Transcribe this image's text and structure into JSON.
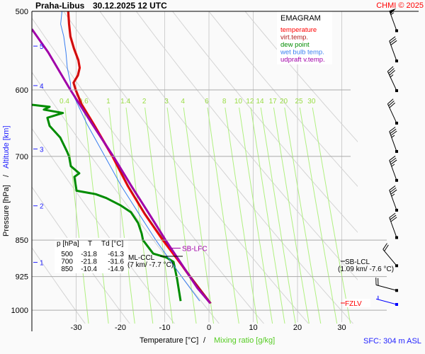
{
  "chart_data": {
    "type": "line",
    "diagram": "EMAGRAM",
    "station": "Praha-Libus",
    "datetime": "30.12.2025 12 UTC",
    "credit": "CHMI © 2025",
    "xlabel": "Temperature [°C]",
    "xlabel_sep": "/",
    "xlabel2": "Mixing ratio [g/kg]",
    "ylabel": "Pressure [hPa]",
    "ylabel_sep": "/",
    "ylabel2": "Altitude [km]",
    "surface_label": "SFC: 304 m ASL",
    "xlim": [
      -40,
      33
    ],
    "ylim": [
      1048,
      500
    ],
    "yscale": "log",
    "x_ticks": [
      -30,
      -20,
      -10,
      0,
      10,
      20,
      30
    ],
    "y_ticks": [
      500,
      600,
      700,
      850,
      925,
      1000
    ],
    "altitude_ticks": [
      {
        "km": 5,
        "p": 542
      },
      {
        "km": 4,
        "p": 594
      },
      {
        "km": 3,
        "p": 688
      },
      {
        "km": 2,
        "p": 785
      },
      {
        "km": 1,
        "p": 895
      }
    ],
    "mixing_ratio_lines": [
      0.4,
      0.6,
      1,
      1.4,
      2,
      3,
      4,
      6,
      8,
      10,
      12,
      14,
      17,
      20,
      25,
      30
    ],
    "dry_adiabats_theta_K": [
      243,
      253,
      263,
      273,
      283,
      293,
      303,
      313,
      323,
      333,
      343
    ],
    "legend": [
      {
        "label": "temperature",
        "color": "#ff0000"
      },
      {
        "label": "virt.temp.",
        "color": "#b01818"
      },
      {
        "label": "dew point",
        "color": "#008c00"
      },
      {
        "label": "wet bulb temp.",
        "color": "#3a7ff0"
      },
      {
        "label": "udpraft v.temp.",
        "color": "#a000a8"
      }
    ],
    "series": [
      {
        "name": "temperature",
        "color": "#ff0000",
        "p": [
          984,
          925,
          900,
          850,
          800,
          750,
          700,
          650,
          620,
          600,
          590,
          580,
          570,
          560,
          545,
          530,
          515,
          500
        ],
        "t": [
          0.3,
          -4.3,
          -6.2,
          -10.4,
          -14.5,
          -18.3,
          -21.8,
          -26.0,
          -28.8,
          -30.1,
          -30.6,
          -29.6,
          -29.2,
          -29.5,
          -30.5,
          -31.3,
          -31.6,
          -31.8
        ]
      },
      {
        "name": "virt.temp.",
        "color": "#b01818",
        "p": [
          984,
          925,
          900,
          850,
          800,
          750,
          700,
          650,
          620,
          600,
          590,
          580,
          570,
          560,
          545,
          530,
          515,
          500
        ],
        "t": [
          0.5,
          -4.1,
          -6.0,
          -10.2,
          -14.4,
          -18.2,
          -21.7,
          -26.0,
          -28.8,
          -30.1,
          -30.6,
          -29.6,
          -29.2,
          -29.5,
          -30.5,
          -31.3,
          -31.6,
          -31.8
        ]
      },
      {
        "name": "dew point",
        "color": "#008c00",
        "p": [
          979,
          930,
          894,
          885,
          877,
          850,
          837,
          817,
          797,
          784,
          771,
          764,
          758,
          734,
          728,
          716,
          700,
          693,
          670,
          652,
          640,
          633,
          628,
          624,
          621,
          600,
          500
        ],
        "t": [
          -6.4,
          -7.2,
          -8.0,
          -9.6,
          -12.6,
          -14.9,
          -15.2,
          -16.0,
          -17.6,
          -20.0,
          -23.2,
          -25.6,
          -29.9,
          -30.4,
          -29.3,
          -31.2,
          -31.6,
          -32.0,
          -33.6,
          -36.0,
          -36.5,
          -33.0,
          -37.3,
          -36.0,
          -40.0,
          -48.0,
          -61.3
        ]
      },
      {
        "name": "wet bulb temp.",
        "color": "#3a7ff0",
        "p": [
          979,
          925,
          850,
          800,
          750,
          700,
          650,
          600,
          590,
          570,
          550,
          530,
          515,
          500
        ],
        "t": [
          -2.1,
          -6.2,
          -12.0,
          -15.8,
          -19.8,
          -23.5,
          -27.5,
          -31.2,
          -31.3,
          -32.0,
          -32.3,
          -32.8,
          -33.5,
          -33.2
        ]
      },
      {
        "name": "udpraft v.temp.",
        "color": "#a000a8",
        "p": [
          984,
          950,
          900,
          850,
          800,
          750,
          700,
          650,
          600,
          550,
          521
        ],
        "t": [
          0.3,
          -2.6,
          -6.1,
          -9.8,
          -13.5,
          -17.5,
          -21.6,
          -26.3,
          -31.3,
          -36.3,
          -40.0
        ]
      }
    ],
    "table": {
      "headers": [
        "p [hPa]",
        "T",
        "Td [°C]"
      ],
      "rows": [
        [
          "500",
          "-31.8",
          "-61.3"
        ],
        [
          "700",
          "-21.8",
          "-31.6"
        ],
        [
          "850",
          "-10.4",
          "-14.9"
        ]
      ]
    },
    "annotations": {
      "sb_lfc": {
        "label": "SB-LFC",
        "p": 866,
        "color": "#a000a8"
      },
      "ml_ccl": {
        "label": "ML-CCL",
        "sub": "(7 km/ -7.7 °C)",
        "p": 880,
        "t": -7.7
      },
      "sb_lcl": {
        "label": "SB-LCL",
        "sub": "(1.09 km/ -7.6 °C)",
        "p": 893,
        "t": -7.6
      },
      "fzlv": {
        "label": "FZLV",
        "p": 980,
        "color": "#ff0000"
      }
    },
    "wind_barbs": [
      {
        "p": 523,
        "dir": 340,
        "speed_kt": 55
      },
      {
        "p": 561,
        "dir": 340,
        "speed_kt": 30
      },
      {
        "p": 601,
        "dir": 335,
        "speed_kt": 35
      },
      {
        "p": 648,
        "dir": 335,
        "speed_kt": 30
      },
      {
        "p": 692,
        "dir": 340,
        "speed_kt": 35
      },
      {
        "p": 740,
        "dir": 340,
        "speed_kt": 35
      },
      {
        "p": 793,
        "dir": 340,
        "speed_kt": 35
      },
      {
        "p": 845,
        "dir": 340,
        "speed_kt": 30
      },
      {
        "p": 902,
        "dir": 320,
        "speed_kt": 20
      },
      {
        "p": 960,
        "dir": 285,
        "speed_kt": 20
      },
      {
        "p": 985,
        "dir": 285,
        "speed_kt": 5,
        "surface": true,
        "color": "#0000ff"
      }
    ]
  }
}
